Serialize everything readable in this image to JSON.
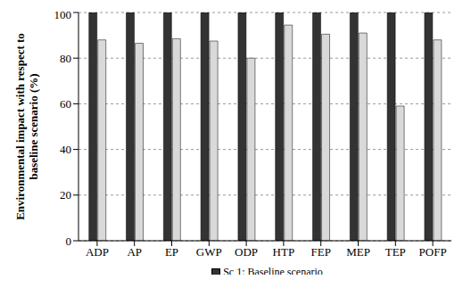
{
  "chart_data": {
    "type": "bar",
    "y_label": "Environmental impact with respect to baseline scenario (%)",
    "categories": [
      "ADP",
      "AP",
      "EP",
      "GWP",
      "ODP",
      "HTP",
      "FEP",
      "MEP",
      "TEP",
      "POFP"
    ],
    "series": [
      {
        "name": "Sc 1: Baseline scenario",
        "color": "#333333",
        "values": [
          100,
          100,
          100,
          100,
          100,
          100,
          100,
          100,
          100,
          100
        ]
      },
      {
        "color": "#d9d9d9",
        "values": [
          88,
          86.5,
          88.5,
          87.5,
          80,
          94.5,
          90.5,
          91,
          59,
          88
        ]
      }
    ],
    "ylim": [
      0,
      100
    ],
    "yticks": [
      0,
      20,
      40,
      60,
      80,
      100
    ],
    "grid": true,
    "legend": "bottom"
  }
}
